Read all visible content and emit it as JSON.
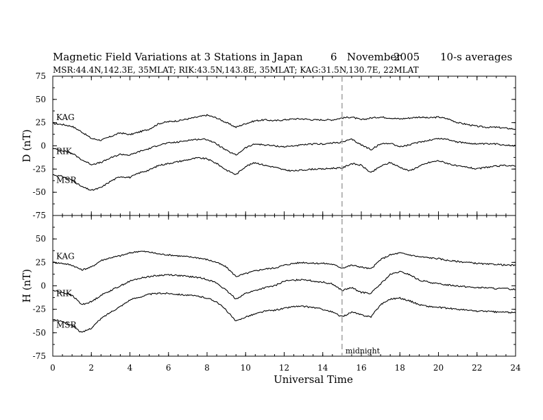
{
  "header": {
    "title_text": "Magnetic Field Variations at 3 Stations in Japan",
    "day": "6",
    "month": "November",
    "year": "2005",
    "averaging": "10-s averages",
    "subtitle": "MSR:44.4N,142.3E, 35MLAT;   RIK:43.5N,143.8E, 35MLAT;   KAG:31.5N,130.7E, 22MLAT"
  },
  "chart_data": [
    {
      "type": "line",
      "panel": "top",
      "ylabel": "D (nT)",
      "xlabel": "",
      "xlim": [
        0,
        24
      ],
      "ylim": [
        -75,
        75
      ],
      "x_ticks": [
        0,
        2,
        4,
        6,
        8,
        10,
        12,
        14,
        16,
        18,
        20,
        22,
        24
      ],
      "y_ticks": [
        75,
        50,
        25,
        0,
        -25,
        -50,
        -75
      ],
      "y_tick_labels": [
        "75",
        "50",
        "25",
        "0",
        "-25",
        "-50",
        "-75"
      ],
      "grid": false,
      "x": [
        0,
        0.5,
        1,
        1.5,
        2,
        2.5,
        3,
        3.5,
        4,
        4.5,
        5,
        5.5,
        6,
        6.5,
        7,
        7.5,
        8,
        8.5,
        9,
        9.5,
        10,
        10.5,
        11,
        11.5,
        12,
        12.5,
        13,
        13.5,
        14,
        14.5,
        15,
        15.5,
        16,
        16.5,
        17,
        17.5,
        18,
        18.5,
        19,
        19.5,
        20,
        20.5,
        21,
        21.5,
        22,
        22.5,
        23,
        23.5,
        24
      ],
      "series": [
        {
          "name": "KAG",
          "values": [
            24,
            23,
            21,
            15,
            8,
            6,
            10,
            14,
            12,
            15,
            18,
            24,
            26,
            27,
            29,
            31,
            33,
            30,
            25,
            20,
            24,
            27,
            28,
            27,
            28,
            29,
            29,
            28,
            28,
            28,
            30,
            31,
            28,
            30,
            31,
            30,
            29,
            30,
            31,
            30,
            31,
            29,
            25,
            23,
            21,
            20,
            20,
            19,
            18
          ]
        },
        {
          "name": "RIK",
          "values": [
            -3,
            -5,
            -8,
            -15,
            -20,
            -18,
            -13,
            -9,
            -10,
            -6,
            -3,
            1,
            3,
            4,
            6,
            7,
            7,
            2,
            -5,
            -10,
            -2,
            2,
            1,
            0,
            -1,
            0,
            1,
            2,
            2,
            3,
            4,
            7,
            1,
            -4,
            2,
            3,
            -1,
            1,
            4,
            6,
            8,
            7,
            4,
            3,
            2,
            2,
            2,
            1,
            0
          ]
        },
        {
          "name": "MSR",
          "values": [
            -31,
            -33,
            -37,
            -44,
            -48,
            -45,
            -38,
            -33,
            -34,
            -29,
            -26,
            -21,
            -19,
            -17,
            -15,
            -13,
            -14,
            -19,
            -26,
            -31,
            -22,
            -18,
            -21,
            -23,
            -26,
            -27,
            -26,
            -25,
            -25,
            -24,
            -24,
            -19,
            -21,
            -29,
            -22,
            -18,
            -23,
            -27,
            -22,
            -18,
            -16,
            -19,
            -22,
            -23,
            -25,
            -23,
            -22,
            -21,
            -22
          ]
        }
      ]
    },
    {
      "type": "line",
      "panel": "bottom",
      "ylabel": "H (nT)",
      "xlabel": "Universal Time",
      "xlim": [
        0,
        24
      ],
      "ylim": [
        -75,
        75
      ],
      "x_ticks": [
        0,
        2,
        4,
        6,
        8,
        10,
        12,
        14,
        16,
        18,
        20,
        22,
        24
      ],
      "y_ticks": [
        75,
        50,
        25,
        0,
        -25,
        -50,
        -75
      ],
      "y_tick_labels": [
        "",
        "50",
        "25",
        "0",
        "-25",
        "-50",
        "-75"
      ],
      "grid": false,
      "x": [
        0,
        0.5,
        1,
        1.5,
        2,
        2.5,
        3,
        3.5,
        4,
        4.5,
        5,
        5.5,
        6,
        6.5,
        7,
        7.5,
        8,
        8.5,
        9,
        9.5,
        10,
        10.5,
        11,
        11.5,
        12,
        12.5,
        13,
        13.5,
        14,
        14.5,
        15,
        15.5,
        16,
        16.5,
        17,
        17.5,
        18,
        18.5,
        19,
        19.5,
        20,
        20.5,
        21,
        21.5,
        22,
        22.5,
        23,
        23.5,
        24
      ],
      "series": [
        {
          "name": "KAG",
          "values": [
            25,
            24,
            22,
            17,
            20,
            27,
            30,
            32,
            35,
            37,
            36,
            34,
            33,
            32,
            31,
            30,
            28,
            25,
            20,
            10,
            13,
            16,
            18,
            19,
            22,
            24,
            25,
            24,
            24,
            23,
            19,
            22,
            20,
            18,
            28,
            33,
            35,
            33,
            31,
            30,
            29,
            27,
            26,
            25,
            24,
            23,
            23,
            22,
            22
          ]
        },
        {
          "name": "RIK",
          "values": [
            -5,
            -7,
            -10,
            -20,
            -17,
            -10,
            -5,
            0,
            5,
            8,
            10,
            11,
            12,
            11,
            10,
            9,
            7,
            3,
            -5,
            -14,
            -8,
            -5,
            -2,
            0,
            5,
            6,
            7,
            5,
            4,
            2,
            -5,
            -2,
            -7,
            -8,
            2,
            12,
            15,
            12,
            6,
            4,
            2,
            1,
            0,
            -1,
            -2,
            -2,
            -3,
            -3,
            -4
          ]
        },
        {
          "name": "MSR",
          "values": [
            -36,
            -38,
            -42,
            -50,
            -45,
            -35,
            -28,
            -22,
            -15,
            -12,
            -9,
            -8,
            -8,
            -9,
            -10,
            -11,
            -13,
            -17,
            -26,
            -38,
            -33,
            -30,
            -27,
            -26,
            -24,
            -22,
            -22,
            -23,
            -25,
            -28,
            -33,
            -28,
            -31,
            -33,
            -20,
            -14,
            -13,
            -16,
            -20,
            -22,
            -23,
            -24,
            -25,
            -26,
            -27,
            -27,
            -28,
            -28,
            -29
          ]
        }
      ]
    }
  ],
  "annotations": {
    "marker_label": "midnight",
    "marker_x": 15
  }
}
